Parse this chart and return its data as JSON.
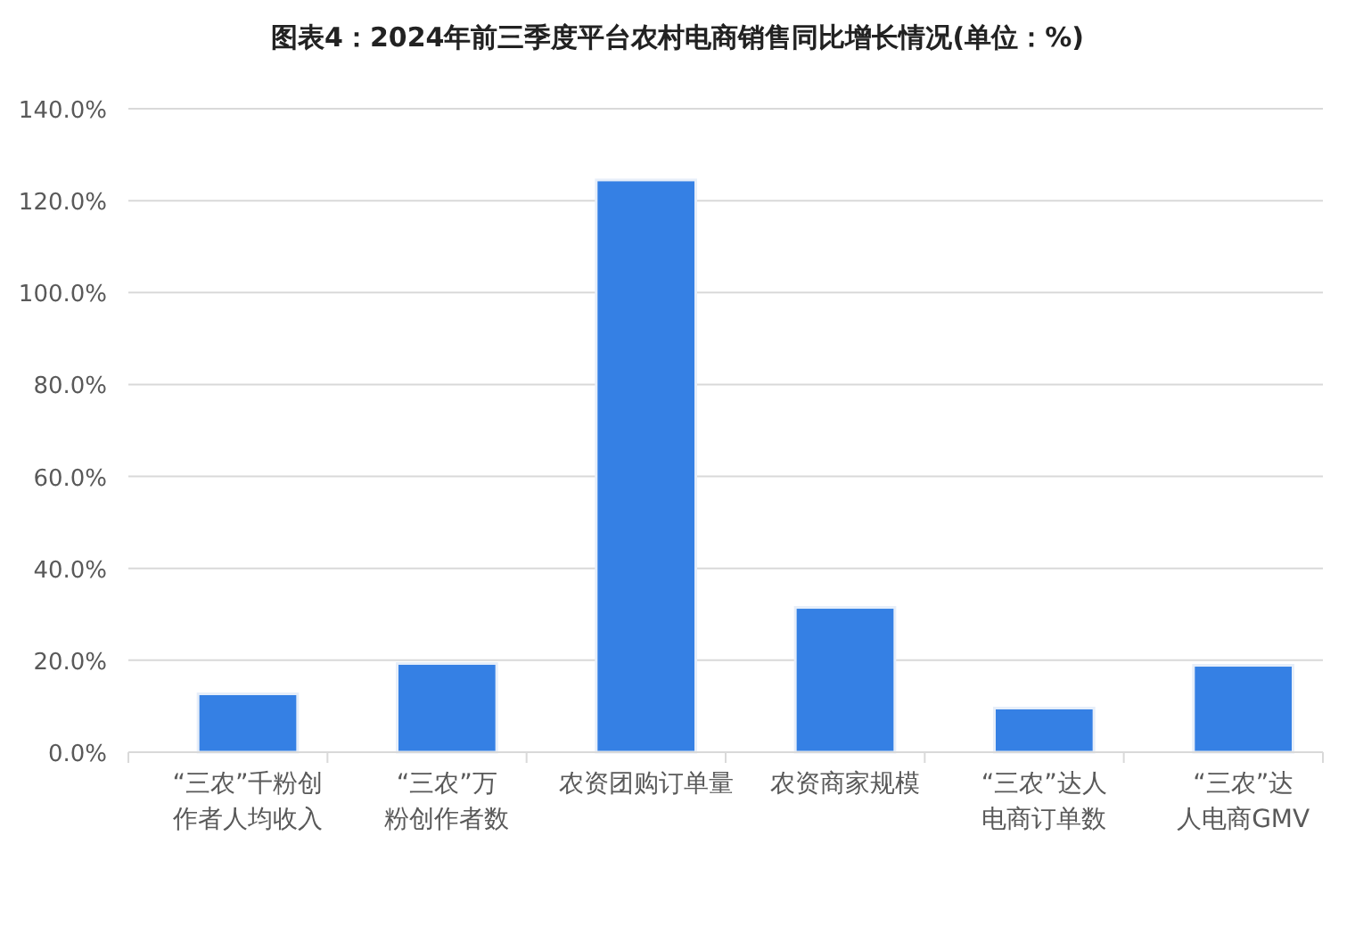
{
  "chart_data": {
    "type": "bar",
    "title": "图表4：2024年前三季度平台农村电商销售同比增长情况(单位：%)",
    "categories": [
      "“三农”千粉创作者人均收入",
      "“三农”万粉创作者数",
      "农资团购订单量",
      "农资商家规模",
      "“三农”达人电商订单数",
      "“三农”达人电商GMV"
    ],
    "values": [
      12.7,
      19.3,
      124.5,
      31.5,
      9.6,
      18.9
    ],
    "color": "#3580e4",
    "ylim": [
      0,
      140
    ],
    "yticks": [
      {
        "value": 0,
        "label": "0.0%"
      },
      {
        "value": 20,
        "label": "20.0%"
      },
      {
        "value": 40,
        "label": "40.0%"
      },
      {
        "value": 60,
        "label": "60.0%"
      },
      {
        "value": 80,
        "label": "80.0%"
      },
      {
        "value": 100,
        "label": "100.0%"
      },
      {
        "value": 120,
        "label": "120.0%"
      },
      {
        "value": 140,
        "label": "140.0%"
      }
    ],
    "grid": "y"
  }
}
